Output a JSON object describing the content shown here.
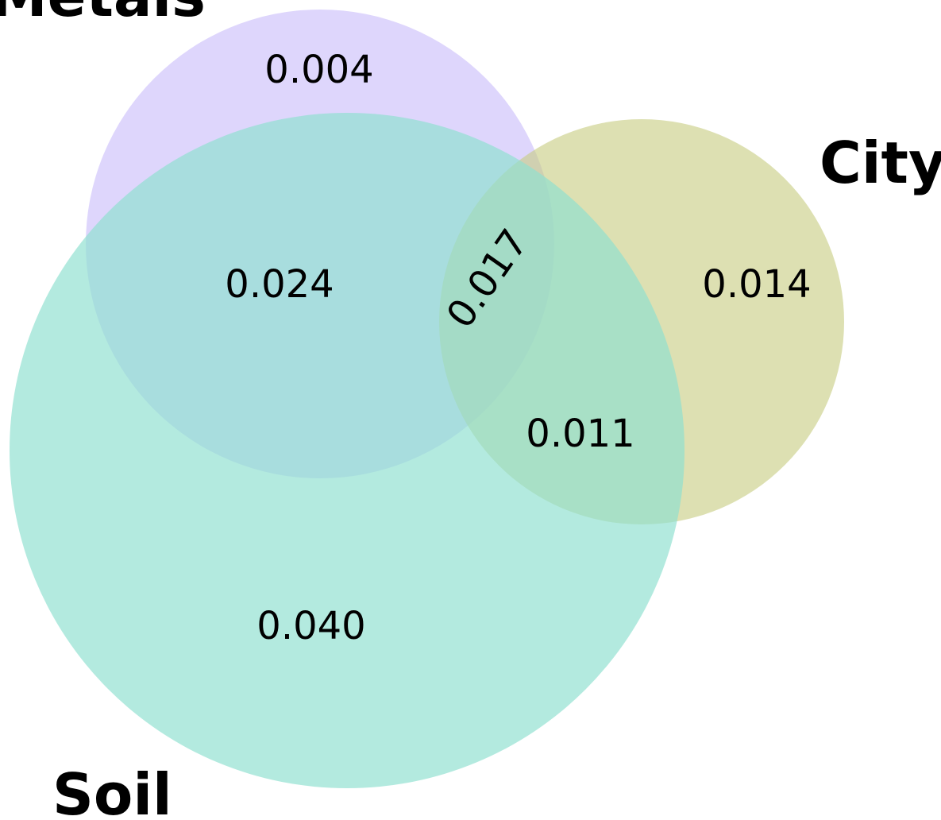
{
  "sets": [
    {
      "key": "metals",
      "label": "Metals",
      "color": "#c9bdfa"
    },
    {
      "key": "soil",
      "label": "Soil",
      "color": "#8fe0d0"
    },
    {
      "key": "city",
      "label": "City",
      "color": "#c8cd82"
    }
  ],
  "regions": {
    "metals_only": "0.004",
    "metals_soil": "0.024",
    "metals_soil_city": "0.017",
    "city_only": "0.014",
    "soil_city": "0.011",
    "soil_only": "0.040"
  }
}
